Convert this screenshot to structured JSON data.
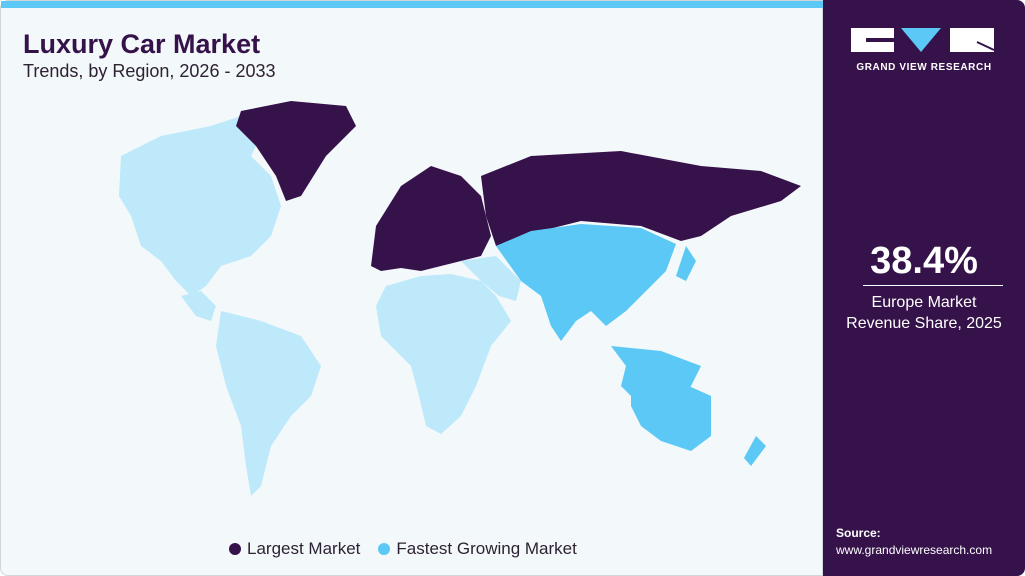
{
  "header": {
    "title": "Luxury Car Market",
    "subtitle": "Trends, by Region, 2026 - 2033"
  },
  "brand": {
    "name": "GRAND VIEW RESEARCH"
  },
  "stat": {
    "value": "38.4%",
    "label_line1": "Europe Market",
    "label_line2": "Revenue Share, 2025"
  },
  "source": {
    "label": "Source:",
    "url": "www.grandviewresearch.com"
  },
  "legend": [
    {
      "label": "Largest Market",
      "color": "#36124a"
    },
    {
      "label": "Fastest Growing Market",
      "color": "#5bc8f5"
    }
  ],
  "map": {
    "regions": [
      {
        "name": "Europe",
        "category": "Largest Market",
        "color": "#36124a"
      },
      {
        "name": "Asia Pacific",
        "category": "Fastest Growing Market",
        "color": "#5bc8f5"
      },
      {
        "name": "North America",
        "color": "#bde9fa"
      },
      {
        "name": "Latin America",
        "color": "#bde9fa"
      },
      {
        "name": "Middle East & Africa",
        "color": "#bde9fa"
      }
    ]
  }
}
